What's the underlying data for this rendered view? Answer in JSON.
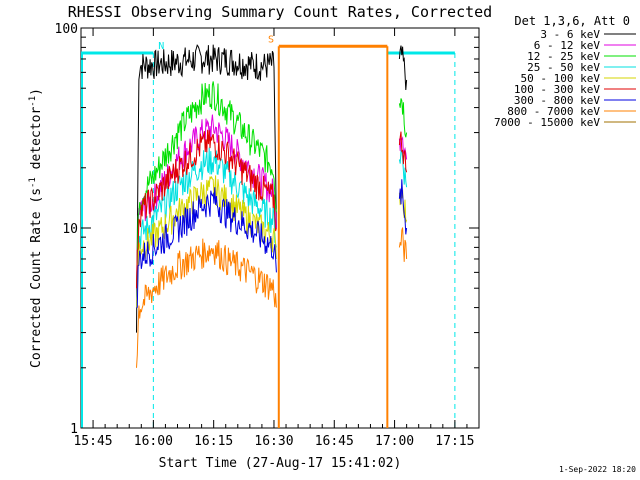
{
  "chart_data": {
    "type": "line",
    "title": "RHESSI Observing Summary Count Rates, Corrected",
    "xlabel": "Start Time (27-Aug-17 15:41:02)",
    "ylabel": "Corrected Count Rate (s",
    "ylabel_sup1": "-1",
    "ylabel_mid": " detector",
    "ylabel_sup2": "-1",
    "ylabel_end": ")",
    "yscale": "log",
    "ylim": [
      1,
      100
    ],
    "xlim_minutes": [
      15.7,
      17.35
    ],
    "x_ticks": [
      {
        "label": "15:45",
        "value": 15.75
      },
      {
        "label": "16:00",
        "value": 16.0
      },
      {
        "label": "16:15",
        "value": 16.25
      },
      {
        "label": "16:30",
        "value": 16.5
      },
      {
        "label": "16:45",
        "value": 16.75
      },
      {
        "label": "17:00",
        "value": 17.0
      },
      {
        "label": "17:15",
        "value": 17.25
      }
    ],
    "y_ticks": [
      {
        "label": "1",
        "value": 1
      },
      {
        "label": "10",
        "value": 10
      },
      {
        "label": "100",
        "value": 100
      }
    ],
    "legend_header": "Det 1,3,6, Att 0",
    "legend_position": "top-right",
    "series": [
      {
        "name": "3 - 6 keV",
        "color": "#000000",
        "segments": [
          [
            [
              15.93,
              3
            ],
            [
              15.94,
              65
            ],
            [
              16.0,
              66
            ],
            [
              16.1,
              68
            ],
            [
              16.2,
              71
            ],
            [
              16.3,
              70
            ],
            [
              16.4,
              66
            ],
            [
              16.46,
              65
            ],
            [
              16.5,
              66
            ],
            [
              16.51,
              10
            ]
          ],
          [
            [
              17.02,
              70
            ],
            [
              17.03,
              72
            ],
            [
              17.05,
              55
            ]
          ]
        ]
      },
      {
        "name": "6 - 12 keV",
        "color": "#e000e0",
        "segments": [
          [
            [
              15.93,
              5
            ],
            [
              15.94,
              12
            ],
            [
              16.0,
              14
            ],
            [
              16.1,
              22
            ],
            [
              16.2,
              30
            ],
            [
              16.25,
              32
            ],
            [
              16.3,
              28
            ],
            [
              16.4,
              20
            ],
            [
              16.5,
              15
            ],
            [
              16.51,
              10
            ]
          ],
          [
            [
              17.02,
              28
            ],
            [
              17.03,
              32
            ],
            [
              17.05,
              22
            ]
          ]
        ]
      },
      {
        "name": "12 - 25 keV",
        "color": "#00e000",
        "segments": [
          [
            [
              15.93,
              5
            ],
            [
              15.94,
              14
            ],
            [
              16.0,
              18
            ],
            [
              16.1,
              30
            ],
            [
              16.2,
              45
            ],
            [
              16.25,
              48
            ],
            [
              16.3,
              40
            ],
            [
              16.4,
              28
            ],
            [
              16.5,
              20
            ],
            [
              16.51,
              12
            ]
          ],
          [
            [
              17.02,
              42
            ],
            [
              17.03,
              46
            ],
            [
              17.05,
              30
            ]
          ]
        ]
      },
      {
        "name": "25 - 50 keV",
        "color": "#00e0e0",
        "segments": [
          [
            [
              15.93,
              4
            ],
            [
              15.94,
              9
            ],
            [
              16.0,
              11
            ],
            [
              16.1,
              16
            ],
            [
              16.2,
              21
            ],
            [
              16.25,
              22
            ],
            [
              16.3,
              19
            ],
            [
              16.4,
              14
            ],
            [
              16.5,
              11
            ],
            [
              16.51,
              8
            ]
          ],
          [
            [
              17.02,
              22
            ],
            [
              17.03,
              24
            ],
            [
              17.05,
              16
            ]
          ]
        ]
      },
      {
        "name": "50 - 100 keV",
        "color": "#d6d600",
        "segments": [
          [
            [
              15.93,
              4
            ],
            [
              15.94,
              8
            ],
            [
              16.0,
              9
            ],
            [
              16.1,
              12
            ],
            [
              16.2,
              15
            ],
            [
              16.25,
              16
            ],
            [
              16.3,
              14
            ],
            [
              16.4,
              11
            ],
            [
              16.5,
              9
            ],
            [
              16.51,
              7
            ]
          ],
          [
            [
              17.02,
              15
            ],
            [
              17.03,
              16
            ],
            [
              17.05,
              11
            ]
          ]
        ]
      },
      {
        "name": "100 - 300 keV",
        "color": "#e00000",
        "segments": [
          [
            [
              15.93,
              5
            ],
            [
              15.94,
              12
            ],
            [
              16.0,
              14
            ],
            [
              16.1,
              20
            ],
            [
              16.2,
              26
            ],
            [
              16.25,
              27
            ],
            [
              16.3,
              24
            ],
            [
              16.4,
              18
            ],
            [
              16.5,
              14
            ],
            [
              16.51,
              10
            ]
          ],
          [
            [
              17.02,
              26
            ],
            [
              17.03,
              28
            ],
            [
              17.05,
              19
            ]
          ]
        ]
      },
      {
        "name": "300 - 800 keV",
        "color": "#0000e0",
        "segments": [
          [
            [
              15.93,
              4
            ],
            [
              15.94,
              7
            ],
            [
              16.0,
              8
            ],
            [
              16.1,
              10
            ],
            [
              16.2,
              13
            ],
            [
              16.25,
              14
            ],
            [
              16.3,
              12
            ],
            [
              16.4,
              10
            ],
            [
              16.5,
              8
            ],
            [
              16.51,
              6
            ]
          ],
          [
            [
              17.02,
              14
            ],
            [
              17.03,
              15
            ],
            [
              17.05,
              10
            ]
          ]
        ]
      },
      {
        "name": "800 - 7000 keV",
        "color": "#ff8000",
        "segments": [
          [
            [
              15.93,
              2
            ],
            [
              15.94,
              4
            ],
            [
              16.0,
              5
            ],
            [
              16.1,
              6.5
            ],
            [
              16.2,
              7.5
            ],
            [
              16.25,
              8
            ],
            [
              16.3,
              7
            ],
            [
              16.4,
              6
            ],
            [
              16.5,
              5
            ],
            [
              16.51,
              4
            ]
          ],
          [
            [
              17.02,
              8
            ],
            [
              17.03,
              9
            ],
            [
              17.05,
              7
            ]
          ]
        ]
      },
      {
        "name": "7000 - 15000 keV",
        "color": "#a07000",
        "segments": []
      }
    ],
    "flags": [
      {
        "label": "N",
        "color": "#00e8e8",
        "level": 75,
        "spans": [
          [
            15.7,
            16.0
          ],
          [
            16.97,
            17.25
          ]
        ],
        "boundaries": [
          16.0,
          16.97,
          17.25
        ]
      },
      {
        "label": "S",
        "color": "#ff8000",
        "level": 81,
        "spans": [
          [
            16.52,
            16.97
          ]
        ],
        "boundaries": [
          16.52,
          16.97
        ]
      }
    ],
    "grid": false
  },
  "footer": {
    "timestamp": "1-Sep-2022 18:20"
  }
}
